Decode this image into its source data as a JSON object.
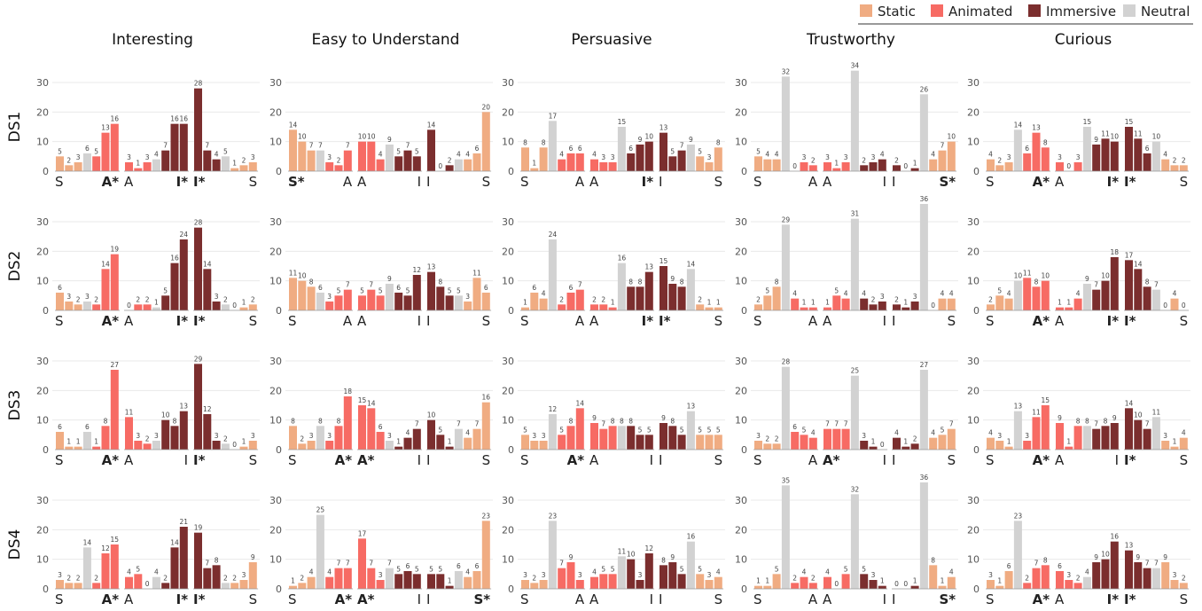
{
  "colors": {
    "static": "#f0ac82",
    "animated": "#f76b64",
    "immersive": "#7b2e2e",
    "neutral": "#d2d2d2",
    "grid": "#e9e9e9",
    "tick_text": "#555555",
    "value_text": "#444444"
  },
  "legend": [
    {
      "key": "static",
      "label": "Static"
    },
    {
      "key": "animated",
      "label": "Animated"
    },
    {
      "key": "immersive",
      "label": "Immersive"
    },
    {
      "key": "neutral",
      "label": "Neutral"
    }
  ],
  "chart_data": {
    "type": "bar",
    "columns": [
      "Interesting",
      "Easy to Understand",
      "Persuasive",
      "Trustworthy",
      "Curious"
    ],
    "rows": [
      "DS1",
      "DS2",
      "DS3",
      "DS4"
    ],
    "ylim": [
      0,
      30
    ],
    "yticks": [
      0,
      10,
      20,
      30
    ],
    "grid": true,
    "legend_position": "top-right",
    "bar_series_order": [
      "first condition (3 bars)",
      "neutral",
      "second condition (3 bars)"
    ],
    "groups": [
      {
        "key": "SA",
        "left": "S",
        "right": "A",
        "colors": [
          "static",
          "static",
          "static",
          "neutral",
          "animated",
          "animated",
          "animated"
        ]
      },
      {
        "key": "AI",
        "left": "A",
        "right": "I",
        "colors": [
          "animated",
          "animated",
          "animated",
          "neutral",
          "immersive",
          "immersive",
          "immersive"
        ]
      },
      {
        "key": "IS",
        "left": "I",
        "right": "S",
        "colors": [
          "immersive",
          "immersive",
          "immersive",
          "neutral",
          "static",
          "static",
          "static"
        ]
      }
    ],
    "panels": [
      [
        {
          "groups": [
            [
              5,
              2,
              3,
              6,
              5,
              13,
              16
            ],
            [
              3,
              1,
              3,
              4,
              7,
              16,
              16
            ],
            [
              28,
              7,
              4,
              5,
              1,
              2,
              3
            ]
          ],
          "bold": [
            "A*",
            "I*",
            "I*"
          ]
        },
        {
          "groups": [
            [
              14,
              10,
              7,
              7,
              3,
              2,
              7
            ],
            [
              10,
              10,
              4,
              9,
              5,
              7,
              5
            ],
            [
              14,
              0,
              2,
              4,
              4,
              6,
              20
            ]
          ],
          "bold": [
            "S*"
          ]
        },
        {
          "groups": [
            [
              8,
              1,
              8,
              17,
              4,
              6,
              6
            ],
            [
              4,
              3,
              3,
              15,
              6,
              9,
              10
            ],
            [
              13,
              5,
              7,
              9,
              5,
              3,
              8
            ]
          ],
          "bold": [
            "I*"
          ]
        },
        {
          "groups": [
            [
              5,
              4,
              4,
              32,
              0,
              3,
              2
            ],
            [
              3,
              1,
              3,
              34,
              2,
              3,
              4
            ],
            [
              2,
              0,
              1,
              26,
              4,
              7,
              10
            ]
          ],
          "bold": [
            "S*"
          ]
        },
        {
          "groups": [
            [
              4,
              2,
              3,
              14,
              6,
              13,
              8
            ],
            [
              3,
              0,
              3,
              15,
              9,
              11,
              10
            ],
            [
              15,
              11,
              6,
              10,
              4,
              2,
              2
            ]
          ],
          "bold": [
            "A*",
            "I*",
            "I*"
          ]
        }
      ],
      [
        {
          "groups": [
            [
              6,
              3,
              2,
              3,
              2,
              14,
              19
            ],
            [
              0,
              2,
              2,
              1,
              5,
              16,
              24
            ],
            [
              28,
              14,
              3,
              2,
              0,
              1,
              2
            ]
          ],
          "bold": [
            "A*",
            "I*",
            "I*"
          ]
        },
        {
          "groups": [
            [
              11,
              10,
              8,
              6,
              3,
              5,
              7
            ],
            [
              5,
              7,
              5,
              9,
              6,
              5,
              12
            ],
            [
              13,
              8,
              5,
              5,
              3,
              11,
              6
            ]
          ],
          "bold": []
        },
        {
          "groups": [
            [
              1,
              6,
              4,
              24,
              2,
              6,
              7
            ],
            [
              2,
              2,
              1,
              16,
              8,
              8,
              13
            ],
            [
              15,
              9,
              8,
              14,
              2,
              1,
              1
            ]
          ],
          "bold": [
            "I*",
            "I*"
          ]
        },
        {
          "groups": [
            [
              2,
              5,
              8,
              29,
              4,
              1,
              1
            ],
            [
              1,
              5,
              4,
              31,
              4,
              2,
              3
            ],
            [
              2,
              1,
              3,
              36,
              0,
              4,
              4
            ]
          ],
          "bold": []
        },
        {
          "groups": [
            [
              2,
              5,
              4,
              10,
              11,
              8,
              10
            ],
            [
              1,
              1,
              4,
              9,
              7,
              10,
              18
            ],
            [
              17,
              14,
              8,
              7,
              0,
              4,
              0
            ]
          ],
          "bold": [
            "A*",
            "I*",
            "I*"
          ]
        }
      ],
      [
        {
          "groups": [
            [
              6,
              1,
              1,
              6,
              1,
              8,
              27
            ],
            [
              11,
              3,
              2,
              3,
              10,
              8,
              13
            ],
            [
              29,
              12,
              3,
              2,
              0,
              1,
              3
            ]
          ],
          "bold": [
            "A*",
            "I*"
          ]
        },
        {
          "groups": [
            [
              8,
              2,
              3,
              8,
              3,
              8,
              18
            ],
            [
              15,
              14,
              6,
              3,
              1,
              4,
              7
            ],
            [
              10,
              5,
              1,
              7,
              4,
              7,
              16
            ]
          ],
          "bold": [
            "A*",
            "A*"
          ]
        },
        {
          "groups": [
            [
              5,
              3,
              3,
              12,
              5,
              8,
              14
            ],
            [
              9,
              7,
              8,
              8,
              8,
              5,
              5
            ],
            [
              9,
              8,
              5,
              13,
              5,
              5,
              5
            ]
          ],
          "bold": [
            "A*"
          ]
        },
        {
          "groups": [
            [
              3,
              2,
              2,
              28,
              6,
              5,
              4
            ],
            [
              7,
              7,
              7,
              25,
              3,
              1,
              0
            ],
            [
              4,
              1,
              2,
              27,
              4,
              5,
              7
            ]
          ],
          "bold": [
            "A*"
          ]
        },
        {
          "groups": [
            [
              4,
              3,
              1,
              13,
              3,
              11,
              15
            ],
            [
              9,
              1,
              8,
              8,
              7,
              8,
              9
            ],
            [
              14,
              10,
              7,
              11,
              3,
              1,
              4
            ]
          ],
          "bold": [
            "A*",
            "I*"
          ]
        }
      ],
      [
        {
          "groups": [
            [
              3,
              2,
              2,
              14,
              2,
              12,
              15
            ],
            [
              4,
              5,
              0,
              4,
              2,
              14,
              21
            ],
            [
              19,
              7,
              8,
              2,
              2,
              3,
              9
            ]
          ],
          "bold": [
            "A*",
            "I*",
            "I*"
          ]
        },
        {
          "groups": [
            [
              1,
              2,
              4,
              25,
              4,
              7,
              7
            ],
            [
              17,
              7,
              3,
              7,
              5,
              6,
              5
            ],
            [
              5,
              5,
              1,
              6,
              4,
              6,
              23
            ]
          ],
          "bold": [
            "A*",
            "A*",
            "S*"
          ]
        },
        {
          "groups": [
            [
              3,
              2,
              3,
              23,
              7,
              9,
              3
            ],
            [
              4,
              5,
              5,
              11,
              10,
              3,
              12
            ],
            [
              8,
              9,
              5,
              16,
              5,
              3,
              4
            ]
          ],
          "bold": []
        },
        {
          "groups": [
            [
              1,
              1,
              5,
              35,
              2,
              4,
              2
            ],
            [
              4,
              0,
              5,
              32,
              5,
              3,
              1
            ],
            [
              0,
              0,
              1,
              36,
              8,
              1,
              4
            ]
          ],
          "bold": [
            "S*"
          ]
        },
        {
          "groups": [
            [
              3,
              1,
              6,
              23,
              2,
              7,
              8
            ],
            [
              6,
              3,
              2,
              4,
              9,
              10,
              16
            ],
            [
              13,
              9,
              7,
              7,
              9,
              3,
              2
            ]
          ],
          "bold": [
            "A*",
            "I*",
            "I*"
          ]
        }
      ]
    ]
  },
  "tick_labels": [
    [
      [
        {
          "left": "S",
          "right": "A*"
        },
        {
          "left": "A",
          "right": "I*"
        },
        {
          "left": "I*",
          "right": "S"
        }
      ],
      [
        {
          "left": "S*",
          "right": "A"
        },
        {
          "left": "A",
          "right": "I"
        },
        {
          "left": "I",
          "right": "S"
        }
      ],
      [
        {
          "left": "S",
          "right": "A"
        },
        {
          "left": "A",
          "right": "I*"
        },
        {
          "left": "I",
          "right": "S"
        }
      ],
      [
        {
          "left": "S",
          "right": "A"
        },
        {
          "left": "A",
          "right": "I"
        },
        {
          "left": "I",
          "right": "S*"
        }
      ],
      [
        {
          "left": "S",
          "right": "A*"
        },
        {
          "left": "A",
          "right": "I*"
        },
        {
          "left": "I*",
          "right": "S"
        }
      ]
    ],
    [
      [
        {
          "left": "S",
          "right": "A*"
        },
        {
          "left": "A",
          "right": "I*"
        },
        {
          "left": "I*",
          "right": "S"
        }
      ],
      [
        {
          "left": "S",
          "right": "A"
        },
        {
          "left": "A",
          "right": "I"
        },
        {
          "left": "I",
          "right": "S"
        }
      ],
      [
        {
          "left": "S",
          "right": "A"
        },
        {
          "left": "A",
          "right": "I*"
        },
        {
          "left": "I*",
          "right": "S"
        }
      ],
      [
        {
          "left": "S",
          "right": "A"
        },
        {
          "left": "A",
          "right": "I"
        },
        {
          "left": "I",
          "right": "S"
        }
      ],
      [
        {
          "left": "S",
          "right": "A*"
        },
        {
          "left": "A",
          "right": "I*"
        },
        {
          "left": "I*",
          "right": "S"
        }
      ]
    ],
    [
      [
        {
          "left": "S",
          "right": "A*"
        },
        {
          "left": "A",
          "right": "I"
        },
        {
          "left": "I*",
          "right": "S"
        }
      ],
      [
        {
          "left": "S",
          "right": "A*"
        },
        {
          "left": "A*",
          "right": "I"
        },
        {
          "left": "I",
          "right": "S"
        }
      ],
      [
        {
          "left": "S",
          "right": "A*"
        },
        {
          "left": "A",
          "right": "I"
        },
        {
          "left": "I",
          "right": "S"
        }
      ],
      [
        {
          "left": "S",
          "right": "A"
        },
        {
          "left": "A*",
          "right": "I"
        },
        {
          "left": "I",
          "right": "S"
        }
      ],
      [
        {
          "left": "S",
          "right": "A*"
        },
        {
          "left": "A",
          "right": "I"
        },
        {
          "left": "I*",
          "right": "S"
        }
      ]
    ],
    [
      [
        {
          "left": "S",
          "right": "A*"
        },
        {
          "left": "A",
          "right": "I*"
        },
        {
          "left": "I*",
          "right": "S"
        }
      ],
      [
        {
          "left": "S",
          "right": "A*"
        },
        {
          "left": "A*",
          "right": "I"
        },
        {
          "left": "I",
          "right": "S*"
        }
      ],
      [
        {
          "left": "S",
          "right": "A"
        },
        {
          "left": "A",
          "right": "I"
        },
        {
          "left": "I",
          "right": "S"
        }
      ],
      [
        {
          "left": "S",
          "right": "A"
        },
        {
          "left": "A",
          "right": "I"
        },
        {
          "left": "I",
          "right": "S*"
        }
      ],
      [
        {
          "left": "S",
          "right": "A*"
        },
        {
          "left": "A",
          "right": "I*"
        },
        {
          "left": "I*",
          "right": "S"
        }
      ]
    ]
  ]
}
